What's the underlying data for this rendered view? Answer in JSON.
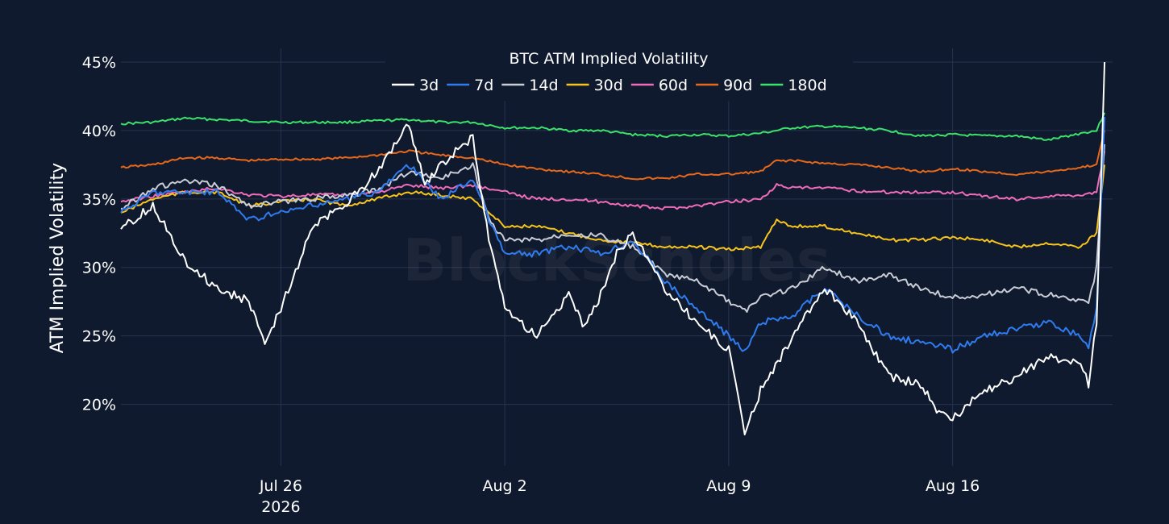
{
  "chart_data": {
    "type": "line",
    "title": "BTC ATM Implied Volatility",
    "ylabel": "ATM Implied Volatility",
    "xlabel": "",
    "watermark": "BlockScholes",
    "x_range": [
      "2026-07-21",
      "2026-08-21"
    ],
    "ylim": [
      15.5,
      46
    ],
    "y_ticks": [
      20,
      25,
      30,
      35,
      40,
      45
    ],
    "y_tick_labels": [
      "20%",
      "25%",
      "30%",
      "35%",
      "40%",
      "45%"
    ],
    "x_ticks": [
      "2026-07-26",
      "2026-08-02",
      "2026-08-09",
      "2026-08-16"
    ],
    "x_tick_labels": [
      [
        "Jul 26",
        "2026"
      ],
      [
        "Aug 2",
        ""
      ],
      [
        "Aug 9",
        ""
      ],
      [
        "Aug 16",
        ""
      ]
    ],
    "grid": true,
    "legend_position": "top-center",
    "series": [
      {
        "name": "3d",
        "color": "#ffffff",
        "points": [
          [
            "2026-07-21",
            32.8
          ],
          [
            "2026-07-22",
            34.5
          ],
          [
            "2026-07-22T12:00",
            32.5
          ],
          [
            "2026-07-23",
            30.5
          ],
          [
            "2026-07-24",
            28.5
          ],
          [
            "2026-07-25",
            27.5
          ],
          [
            "2026-07-25T12:00",
            24.5
          ],
          [
            "2026-07-26",
            27.0
          ],
          [
            "2026-07-27",
            33.0
          ],
          [
            "2026-07-28",
            34.5
          ],
          [
            "2026-07-29",
            37.0
          ],
          [
            "2026-07-30",
            40.5
          ],
          [
            "2026-07-30T12:00",
            36.0
          ],
          [
            "2026-07-31",
            37.5
          ],
          [
            "2026-08-01",
            39.5
          ],
          [
            "2026-08-01T12:00",
            32.0
          ],
          [
            "2026-08-02",
            27.0
          ],
          [
            "2026-08-03",
            25.0
          ],
          [
            "2026-08-04",
            28.0
          ],
          [
            "2026-08-04T12:00",
            25.5
          ],
          [
            "2026-08-05",
            28.0
          ],
          [
            "2026-08-05T12:00",
            31.0
          ],
          [
            "2026-08-06",
            32.5
          ],
          [
            "2026-08-07",
            28.5
          ],
          [
            "2026-08-08",
            26.0
          ],
          [
            "2026-08-09",
            24.0
          ],
          [
            "2026-08-09T12:00",
            18.0
          ],
          [
            "2026-08-10",
            21.0
          ],
          [
            "2026-08-11",
            25.0
          ],
          [
            "2026-08-12",
            28.5
          ],
          [
            "2026-08-13",
            26.0
          ],
          [
            "2026-08-14",
            22.0
          ],
          [
            "2026-08-15",
            21.5
          ],
          [
            "2026-08-15T12:00",
            19.5
          ],
          [
            "2026-08-16",
            19.0
          ],
          [
            "2026-08-17",
            21.0
          ],
          [
            "2026-08-18",
            22.0
          ],
          [
            "2026-08-19",
            23.5
          ],
          [
            "2026-08-20",
            23.0
          ],
          [
            "2026-08-20T06:00",
            21.5
          ],
          [
            "2026-08-20T12:00",
            26.0
          ],
          [
            "2026-08-20T18:00",
            45.0
          ]
        ]
      },
      {
        "name": "7d",
        "color": "#2f7bf0",
        "points": [
          [
            "2026-07-21",
            34.0
          ],
          [
            "2026-07-22",
            35.5
          ],
          [
            "2026-07-23",
            35.5
          ],
          [
            "2026-07-24",
            35.5
          ],
          [
            "2026-07-25",
            33.5
          ],
          [
            "2026-07-26",
            34.0
          ],
          [
            "2026-07-27",
            34.5
          ],
          [
            "2026-07-28",
            35.0
          ],
          [
            "2026-07-29",
            35.5
          ],
          [
            "2026-07-30",
            37.5
          ],
          [
            "2026-07-31",
            35.0
          ],
          [
            "2026-08-01",
            36.5
          ],
          [
            "2026-08-01T12:00",
            33.5
          ],
          [
            "2026-08-02",
            31.0
          ],
          [
            "2026-08-03",
            31.0
          ],
          [
            "2026-08-04",
            31.5
          ],
          [
            "2026-08-05",
            31.0
          ],
          [
            "2026-08-06",
            32.0
          ],
          [
            "2026-08-07",
            29.0
          ],
          [
            "2026-08-08",
            27.0
          ],
          [
            "2026-08-09",
            25.0
          ],
          [
            "2026-08-09T12:00",
            23.8
          ],
          [
            "2026-08-10",
            26.0
          ],
          [
            "2026-08-11",
            26.5
          ],
          [
            "2026-08-12",
            28.5
          ],
          [
            "2026-08-13",
            26.5
          ],
          [
            "2026-08-14",
            25.0
          ],
          [
            "2026-08-15",
            24.5
          ],
          [
            "2026-08-16",
            24.0
          ],
          [
            "2026-08-17",
            25.0
          ],
          [
            "2026-08-18",
            25.5
          ],
          [
            "2026-08-19",
            26.0
          ],
          [
            "2026-08-20",
            25.0
          ],
          [
            "2026-08-20T06:00",
            24.2
          ],
          [
            "2026-08-20T12:00",
            27.0
          ],
          [
            "2026-08-20T18:00",
            41.0
          ]
        ]
      },
      {
        "name": "14d",
        "color": "#c9cdd6",
        "points": [
          [
            "2026-07-21",
            34.3
          ],
          [
            "2026-07-22",
            35.8
          ],
          [
            "2026-07-23",
            36.3
          ],
          [
            "2026-07-24",
            36.0
          ],
          [
            "2026-07-25",
            34.5
          ],
          [
            "2026-07-26",
            34.8
          ],
          [
            "2026-07-27",
            35.0
          ],
          [
            "2026-07-28",
            35.3
          ],
          [
            "2026-07-29",
            35.6
          ],
          [
            "2026-07-30",
            37.0
          ],
          [
            "2026-07-31",
            36.5
          ],
          [
            "2026-08-01",
            37.5
          ],
          [
            "2026-08-01T12:00",
            33.5
          ],
          [
            "2026-08-02",
            32.0
          ],
          [
            "2026-08-03",
            32.0
          ],
          [
            "2026-08-04",
            32.5
          ],
          [
            "2026-08-05",
            32.3
          ],
          [
            "2026-08-06",
            31.5
          ],
          [
            "2026-08-07",
            29.5
          ],
          [
            "2026-08-08",
            29.0
          ],
          [
            "2026-08-09",
            27.5
          ],
          [
            "2026-08-09T12:00",
            26.8
          ],
          [
            "2026-08-10",
            27.8
          ],
          [
            "2026-08-11",
            28.5
          ],
          [
            "2026-08-12",
            30.0
          ],
          [
            "2026-08-13",
            29.0
          ],
          [
            "2026-08-14",
            29.5
          ],
          [
            "2026-08-15",
            28.5
          ],
          [
            "2026-08-16",
            27.8
          ],
          [
            "2026-08-17",
            28.0
          ],
          [
            "2026-08-18",
            28.5
          ],
          [
            "2026-08-19",
            28.0
          ],
          [
            "2026-08-20",
            27.5
          ],
          [
            "2026-08-20T06:00",
            27.3
          ],
          [
            "2026-08-20T12:00",
            30.0
          ],
          [
            "2026-08-20T18:00",
            39.0
          ]
        ]
      },
      {
        "name": "30d",
        "color": "#f7c41c",
        "points": [
          [
            "2026-07-21",
            34.0
          ],
          [
            "2026-07-22",
            35.0
          ],
          [
            "2026-07-23",
            35.5
          ],
          [
            "2026-07-24",
            35.5
          ],
          [
            "2026-07-25",
            34.5
          ],
          [
            "2026-07-26",
            34.8
          ],
          [
            "2026-07-27",
            35.0
          ],
          [
            "2026-07-28",
            34.5
          ],
          [
            "2026-07-29",
            35.0
          ],
          [
            "2026-07-30",
            35.5
          ],
          [
            "2026-07-31",
            35.3
          ],
          [
            "2026-08-01",
            35.0
          ],
          [
            "2026-08-01T12:00",
            34.0
          ],
          [
            "2026-08-02",
            33.0
          ],
          [
            "2026-08-03",
            33.0
          ],
          [
            "2026-08-04",
            32.5
          ],
          [
            "2026-08-05",
            32.0
          ],
          [
            "2026-08-06",
            31.8
          ],
          [
            "2026-08-07",
            31.5
          ],
          [
            "2026-08-08",
            31.5
          ],
          [
            "2026-08-09",
            31.3
          ],
          [
            "2026-08-10",
            31.5
          ],
          [
            "2026-08-10T12:00",
            33.5
          ],
          [
            "2026-08-11",
            33.0
          ],
          [
            "2026-08-12",
            33.0
          ],
          [
            "2026-08-13",
            32.5
          ],
          [
            "2026-08-14",
            32.0
          ],
          [
            "2026-08-15",
            32.0
          ],
          [
            "2026-08-16",
            32.2
          ],
          [
            "2026-08-17",
            32.0
          ],
          [
            "2026-08-18",
            31.5
          ],
          [
            "2026-08-19",
            31.8
          ],
          [
            "2026-08-20",
            31.5
          ],
          [
            "2026-08-20T12:00",
            32.5
          ],
          [
            "2026-08-20T18:00",
            37.5
          ]
        ]
      },
      {
        "name": "60d",
        "color": "#f06bb8",
        "points": [
          [
            "2026-07-21",
            34.8
          ],
          [
            "2026-07-22",
            35.2
          ],
          [
            "2026-07-23",
            35.5
          ],
          [
            "2026-07-24",
            35.8
          ],
          [
            "2026-07-25",
            35.3
          ],
          [
            "2026-07-26",
            35.2
          ],
          [
            "2026-07-27",
            35.3
          ],
          [
            "2026-07-28",
            35.3
          ],
          [
            "2026-07-29",
            35.5
          ],
          [
            "2026-07-30",
            36.0
          ],
          [
            "2026-07-31",
            35.8
          ],
          [
            "2026-08-01",
            36.0
          ],
          [
            "2026-08-02",
            35.5
          ],
          [
            "2026-08-03",
            35.0
          ],
          [
            "2026-08-04",
            35.0
          ],
          [
            "2026-08-05",
            34.8
          ],
          [
            "2026-08-06",
            34.5
          ],
          [
            "2026-08-07",
            34.3
          ],
          [
            "2026-08-08",
            34.5
          ],
          [
            "2026-08-09",
            34.8
          ],
          [
            "2026-08-10",
            35.0
          ],
          [
            "2026-08-10T12:00",
            36.0
          ],
          [
            "2026-08-11",
            35.8
          ],
          [
            "2026-08-12",
            35.8
          ],
          [
            "2026-08-13",
            35.6
          ],
          [
            "2026-08-14",
            35.5
          ],
          [
            "2026-08-15",
            35.5
          ],
          [
            "2026-08-16",
            35.5
          ],
          [
            "2026-08-17",
            35.2
          ],
          [
            "2026-08-18",
            35.0
          ],
          [
            "2026-08-19",
            35.2
          ],
          [
            "2026-08-20",
            35.3
          ],
          [
            "2026-08-20T12:00",
            35.5
          ],
          [
            "2026-08-20T18:00",
            38.5
          ]
        ]
      },
      {
        "name": "90d",
        "color": "#e8681a",
        "points": [
          [
            "2026-07-21",
            37.3
          ],
          [
            "2026-07-22",
            37.5
          ],
          [
            "2026-07-23",
            38.0
          ],
          [
            "2026-07-24",
            38.0
          ],
          [
            "2026-07-25",
            37.8
          ],
          [
            "2026-07-26",
            37.9
          ],
          [
            "2026-07-27",
            37.9
          ],
          [
            "2026-07-28",
            38.0
          ],
          [
            "2026-07-29",
            38.2
          ],
          [
            "2026-07-30",
            38.5
          ],
          [
            "2026-07-31",
            38.2
          ],
          [
            "2026-08-01",
            38.0
          ],
          [
            "2026-08-02",
            37.5
          ],
          [
            "2026-08-03",
            37.2
          ],
          [
            "2026-08-04",
            37.0
          ],
          [
            "2026-08-05",
            36.8
          ],
          [
            "2026-08-06",
            36.5
          ],
          [
            "2026-08-07",
            36.5
          ],
          [
            "2026-08-08",
            36.8
          ],
          [
            "2026-08-09",
            36.8
          ],
          [
            "2026-08-10",
            37.0
          ],
          [
            "2026-08-10T12:00",
            37.8
          ],
          [
            "2026-08-11",
            37.8
          ],
          [
            "2026-08-12",
            37.6
          ],
          [
            "2026-08-13",
            37.5
          ],
          [
            "2026-08-14",
            37.3
          ],
          [
            "2026-08-15",
            37.0
          ],
          [
            "2026-08-16",
            37.2
          ],
          [
            "2026-08-17",
            37.0
          ],
          [
            "2026-08-18",
            36.8
          ],
          [
            "2026-08-19",
            37.0
          ],
          [
            "2026-08-20",
            37.3
          ],
          [
            "2026-08-20T12:00",
            37.5
          ],
          [
            "2026-08-20T18:00",
            40.0
          ]
        ]
      },
      {
        "name": "180d",
        "color": "#3be36a",
        "points": [
          [
            "2026-07-21",
            40.5
          ],
          [
            "2026-07-22",
            40.6
          ],
          [
            "2026-07-23",
            40.9
          ],
          [
            "2026-07-24",
            40.8
          ],
          [
            "2026-07-25",
            40.7
          ],
          [
            "2026-07-26",
            40.6
          ],
          [
            "2026-07-27",
            40.6
          ],
          [
            "2026-07-28",
            40.6
          ],
          [
            "2026-07-29",
            40.7
          ],
          [
            "2026-07-30",
            40.8
          ],
          [
            "2026-07-31",
            40.6
          ],
          [
            "2026-08-01",
            40.6
          ],
          [
            "2026-08-02",
            40.2
          ],
          [
            "2026-08-03",
            40.2
          ],
          [
            "2026-08-04",
            40.0
          ],
          [
            "2026-08-05",
            40.0
          ],
          [
            "2026-08-06",
            39.7
          ],
          [
            "2026-08-07",
            39.6
          ],
          [
            "2026-08-08",
            39.7
          ],
          [
            "2026-08-09",
            39.6
          ],
          [
            "2026-08-10",
            39.8
          ],
          [
            "2026-08-11",
            40.2
          ],
          [
            "2026-08-12",
            40.3
          ],
          [
            "2026-08-13",
            40.2
          ],
          [
            "2026-08-14",
            40.0
          ],
          [
            "2026-08-15",
            39.6
          ],
          [
            "2026-08-16",
            39.7
          ],
          [
            "2026-08-17",
            39.6
          ],
          [
            "2026-08-18",
            39.6
          ],
          [
            "2026-08-19",
            39.3
          ],
          [
            "2026-08-20",
            39.8
          ],
          [
            "2026-08-20T12:00",
            40.0
          ],
          [
            "2026-08-20T18:00",
            41.3
          ]
        ]
      }
    ]
  }
}
